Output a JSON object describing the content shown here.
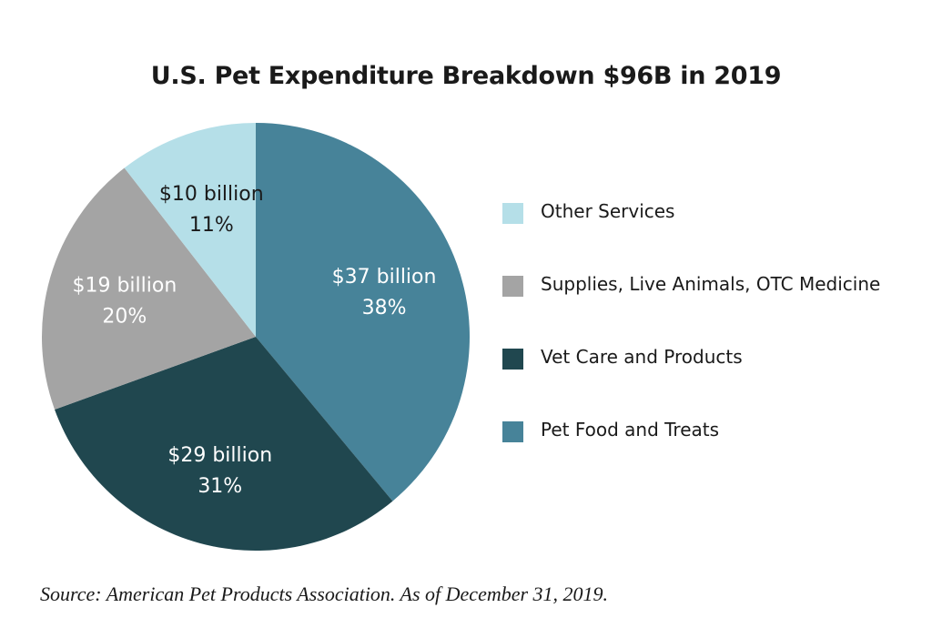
{
  "chart_data": {
    "type": "pie",
    "title": "U.S. Pet Expenditure Breakdown $96B in 2019",
    "start_angle_deg": 0,
    "direction": "clockwise",
    "slices": [
      {
        "name": "Pet Food and Treats",
        "value": 37,
        "amount_label": "$37 billion",
        "percent_label": "38%",
        "color": "#478399",
        "label_color": "#ffffff"
      },
      {
        "name": "Vet Care and Products",
        "value": 29,
        "amount_label": "$29 billion",
        "percent_label": "31%",
        "color": "#20474f",
        "label_color": "#ffffff"
      },
      {
        "name": "Supplies, Live Animals, OTC Medicine",
        "value": 19,
        "amount_label": "$19 billion",
        "percent_label": "20%",
        "color": "#a4a4a4",
        "label_color": "#ffffff"
      },
      {
        "name": "Other Services",
        "value": 10,
        "amount_label": "$10 billion",
        "percent_label": "11%",
        "color": "#b5dfe8",
        "label_color": "#1a1a1a"
      }
    ],
    "legend_order": [
      "Other Services",
      "Supplies, Live Animals, OTC Medicine",
      "Vet Care and Products",
      "Pet Food and Treats"
    ],
    "legend_position": "right"
  },
  "source_note": "Source: American Pet Products Association. As of December 31, 2019."
}
